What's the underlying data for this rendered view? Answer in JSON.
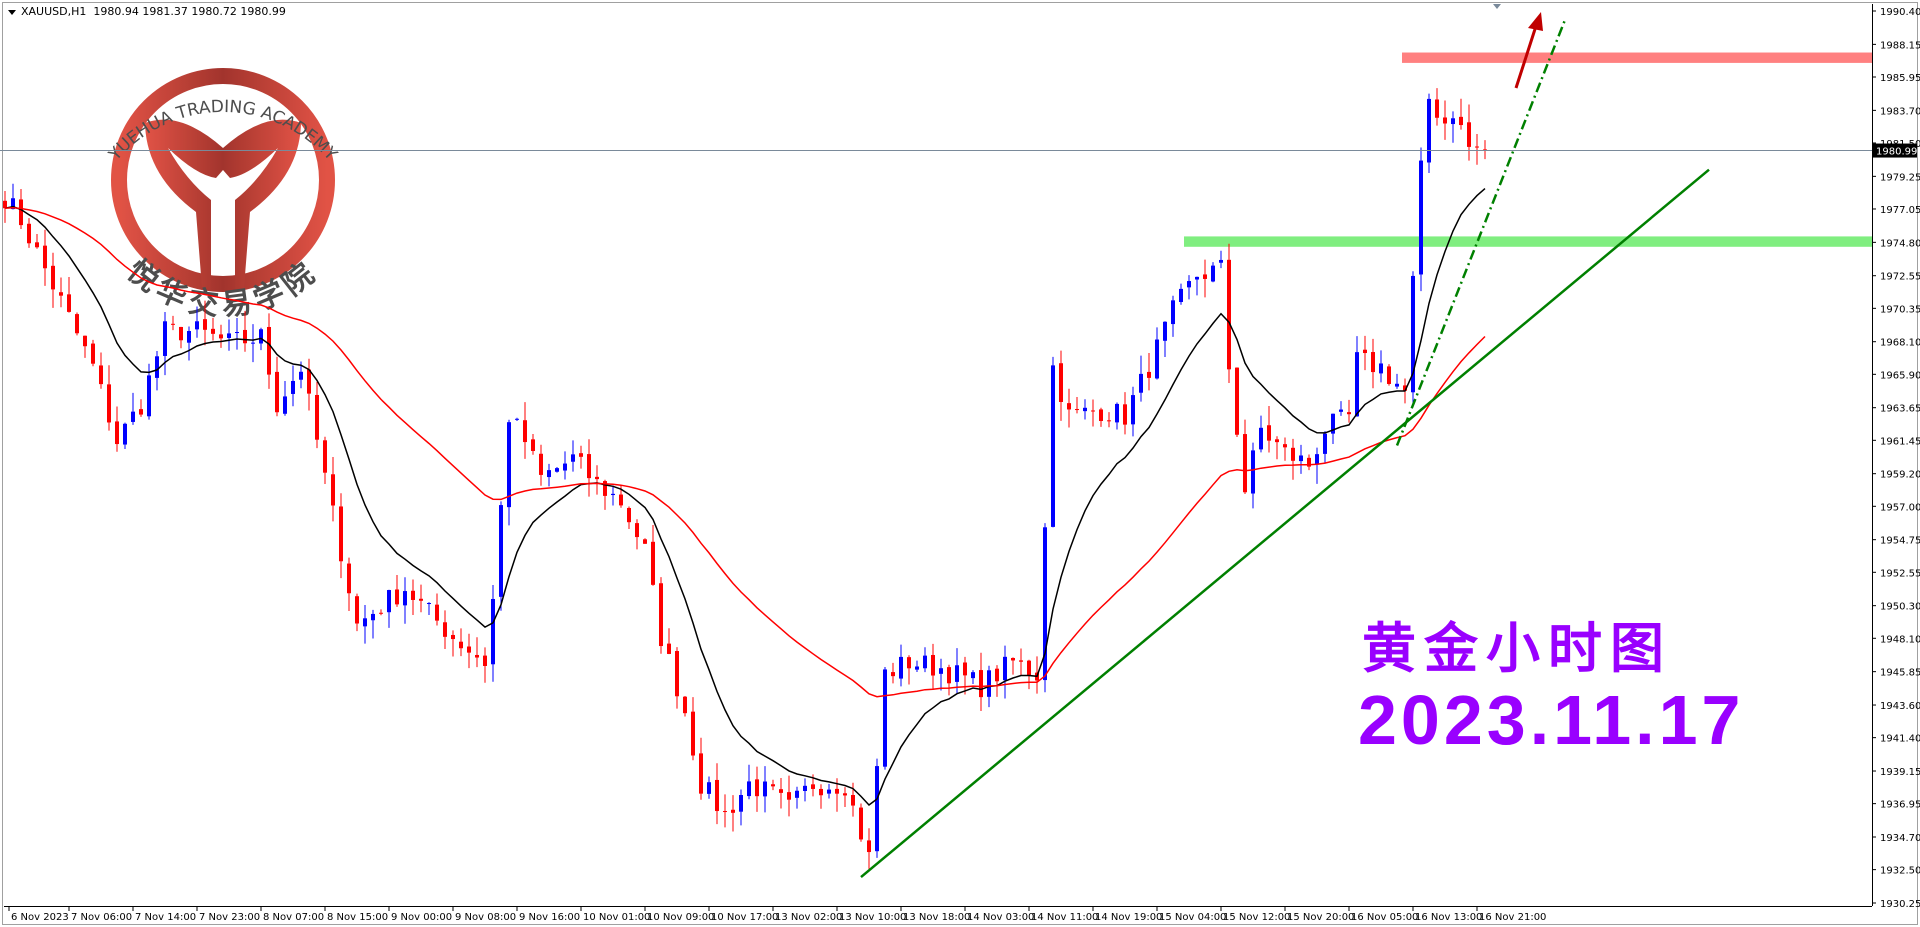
{
  "header": {
    "symbol": "XAUUSD,H1",
    "ohlc": "1980.94 1981.37 1980.72 1980.99"
  },
  "annotations": {
    "title": "黄金小时图",
    "date": "2023.11.17"
  },
  "logo": {
    "english": "YUEHUA TRADING ACADEMY",
    "chinese": "悦华交易学院"
  },
  "colors": {
    "bull": "#0000ff",
    "bear": "#ff0000",
    "ma_fast": "#000000",
    "ma_slow": "#ff0000",
    "resistance": "#ff8080",
    "support": "#80ee80",
    "trend": "#008000",
    "arrow": "#c00000",
    "text": "#9900ff",
    "logo": "#b83228"
  },
  "chart_data": {
    "type": "candlestick",
    "symbol": "XAUUSD",
    "timeframe": "H1",
    "current_price": "1980.99",
    "ylim": [
      1930.25,
      1990.4
    ],
    "y_ticks": [
      "1990.40",
      "1988.15",
      "1985.95",
      "1983.70",
      "1981.50",
      "1979.25",
      "1977.05",
      "1974.80",
      "1972.55",
      "1970.35",
      "1968.10",
      "1965.90",
      "1963.65",
      "1961.45",
      "1959.20",
      "1957.00",
      "1954.75",
      "1952.55",
      "1950.30",
      "1948.10",
      "1945.85",
      "1943.60",
      "1941.40",
      "1939.15",
      "1936.95",
      "1934.70",
      "1932.50",
      "1930.25"
    ],
    "x_ticks": [
      "6 Nov 2023",
      "7 Nov 06:00",
      "7 Nov 14:00",
      "7 Nov 23:00",
      "8 Nov 07:00",
      "8 Nov 15:00",
      "9 Nov 00:00",
      "9 Nov 08:00",
      "9 Nov 16:00",
      "10 Nov 01:00",
      "10 Nov 09:00",
      "10 Nov 17:00",
      "13 Nov 02:00",
      "13 Nov 10:00",
      "13 Nov 18:00",
      "14 Nov 03:00",
      "14 Nov 11:00",
      "14 Nov 19:00",
      "15 Nov 04:00",
      "15 Nov 12:00",
      "15 Nov 20:00",
      "16 Nov 05:00",
      "16 Nov 13:00",
      "16 Nov 21:00"
    ],
    "bar_count": 186,
    "close_path": [
      [
        0,
        1977.9
      ],
      [
        2,
        1976.3
      ],
      [
        5,
        1973
      ],
      [
        8,
        1969.7
      ],
      [
        11,
        1966.4
      ],
      [
        14,
        1961.4
      ],
      [
        17,
        1963.9
      ],
      [
        20,
        1968.8
      ],
      [
        24,
        1968.8
      ],
      [
        28,
        1968
      ],
      [
        32,
        1968.4
      ],
      [
        34,
        1963.9
      ],
      [
        37,
        1966.4
      ],
      [
        40,
        1958.9
      ],
      [
        42,
        1954
      ],
      [
        44,
        1949
      ],
      [
        47,
        1950.3
      ],
      [
        50,
        1951.5
      ],
      [
        53,
        1949.8
      ],
      [
        56,
        1948.2
      ],
      [
        60,
        1946.5
      ],
      [
        61,
        1950.7
      ],
      [
        63,
        1963.1
      ],
      [
        65,
        1961.4
      ],
      [
        67,
        1958.9
      ],
      [
        71,
        1960.2
      ],
      [
        74,
        1958.5
      ],
      [
        77,
        1957.3
      ],
      [
        80,
        1954
      ],
      [
        82,
        1948.2
      ],
      [
        85,
        1943.2
      ],
      [
        87,
        1938.3
      ],
      [
        90,
        1936.2
      ],
      [
        93,
        1938.3
      ],
      [
        96,
        1937.5
      ],
      [
        98,
        1936.6
      ],
      [
        101,
        1938.3
      ],
      [
        105,
        1938.3
      ],
      [
        108,
        1933.3
      ],
      [
        110,
        1945.7
      ],
      [
        113,
        1946.5
      ],
      [
        117,
        1946.1
      ],
      [
        122,
        1944.9
      ],
      [
        126,
        1946.5
      ],
      [
        129,
        1945.7
      ],
      [
        131,
        1966.4
      ],
      [
        133,
        1963.1
      ],
      [
        137,
        1963.5
      ],
      [
        140,
        1963.1
      ],
      [
        143,
        1966.4
      ],
      [
        146,
        1970.1
      ],
      [
        149,
        1972.6
      ],
      [
        152,
        1973
      ],
      [
        153,
        1966.4
      ],
      [
        155,
        1958.1
      ],
      [
        157,
        1962.2
      ],
      [
        160,
        1960.6
      ],
      [
        163,
        1959.8
      ],
      [
        165,
        1962.2
      ],
      [
        168,
        1963
      ],
      [
        169,
        1966.8
      ],
      [
        172,
        1966.4
      ],
      [
        175,
        1964.7
      ],
      [
        176,
        1972.1
      ],
      [
        177,
        1979.6
      ],
      [
        178,
        1984.5
      ],
      [
        180,
        1982.9
      ],
      [
        181,
        1983.7
      ],
      [
        183,
        1981.2
      ],
      [
        185,
        1980.99
      ]
    ],
    "moving_averages": [
      {
        "name": "fast MA",
        "period": 12
      },
      {
        "name": "slow MA",
        "period": 48
      }
    ],
    "zones": [
      {
        "name": "resistance",
        "from": 1986.9,
        "to": 1987.6
      },
      {
        "name": "support",
        "from": 1974.5,
        "to": 1975.2
      }
    ],
    "trendlines": [
      {
        "name": "support trend",
        "from": [
          107,
          1932.0
        ],
        "to": [
          213,
          1979.7
        ]
      },
      {
        "name": "steep trend",
        "from": [
          174,
          1961.1
        ],
        "to": [
          195,
          1989.8
        ]
      }
    ]
  }
}
